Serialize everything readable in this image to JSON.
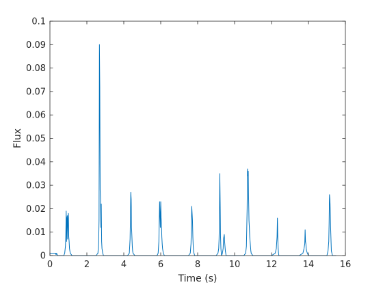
{
  "chart_data": {
    "type": "line",
    "xlabel": "Time (s)",
    "ylabel": "Flux",
    "xlim": [
      0,
      16
    ],
    "ylim": [
      0,
      0.1
    ],
    "xticks": [
      "0",
      "2",
      "4",
      "6",
      "8",
      "10",
      "12",
      "14",
      "16"
    ],
    "yticks": [
      "0",
      "0.01",
      "0.02",
      "0.03",
      "0.04",
      "0.05",
      "0.06",
      "0.07",
      "0.08",
      "0.09",
      "0.1"
    ],
    "grid": false,
    "line_color": "#0072BD",
    "series": [
      {
        "x": [
          0,
          0.3,
          0.32,
          0.34,
          0.36,
          0.38,
          0.4,
          0.5,
          0.75,
          0.8,
          0.84,
          0.86,
          0.88,
          0.9,
          0.92,
          0.94,
          0.96,
          0.98,
          1.0,
          1.02,
          1.04,
          1.06,
          1.1,
          1.15,
          1.2,
          1.3,
          1.5,
          2.0,
          2.5,
          2.6,
          2.64,
          2.66,
          2.68,
          2.7,
          2.72,
          2.74,
          2.76,
          2.78,
          2.8,
          2.82,
          2.86,
          2.9,
          3.0,
          3.5,
          4.0,
          4.2,
          4.3,
          4.34,
          4.36,
          4.38,
          4.4,
          4.42,
          4.44,
          4.46,
          4.48,
          4.5,
          4.55,
          4.6,
          4.7,
          5.0,
          5.5,
          5.8,
          5.86,
          5.9,
          5.92,
          5.94,
          5.96,
          5.98,
          6.0,
          6.02,
          6.04,
          6.06,
          6.08,
          6.1,
          6.14,
          6.2,
          6.3,
          6.5,
          7.0,
          7.5,
          7.6,
          7.64,
          7.66,
          7.68,
          7.7,
          7.72,
          7.74,
          7.76,
          7.78,
          7.8,
          7.84,
          7.9,
          8.0,
          8.5,
          9.0,
          9.1,
          9.14,
          9.16,
          9.18,
          9.2,
          9.22,
          9.24,
          9.26,
          9.28,
          9.3,
          9.34,
          9.38,
          9.4,
          9.44,
          9.46,
          9.48,
          9.5,
          9.52,
          9.54,
          9.56,
          9.58,
          9.6,
          9.65,
          9.7,
          10.0,
          10.5,
          10.6,
          10.64,
          10.66,
          10.68,
          10.7,
          10.72,
          10.74,
          10.76,
          10.78,
          10.8,
          10.82,
          10.84,
          10.86,
          10.88,
          10.9,
          10.94,
          11.0,
          11.05,
          11.1,
          11.2,
          11.5,
          12.0,
          12.2,
          12.26,
          12.3,
          12.32,
          12.34,
          12.36,
          12.38,
          12.4,
          12.44,
          12.5,
          12.6,
          13.0,
          13.5,
          13.7,
          13.76,
          13.8,
          13.82,
          13.84,
          13.86,
          13.88,
          13.9,
          13.94,
          14.0,
          14.1,
          14.5,
          15.0,
          15.06,
          15.1,
          15.12,
          15.14,
          15.16,
          15.18,
          15.2,
          15.24,
          15.3,
          15.35,
          15.5
        ],
        "y": [
          0.001,
          0.001,
          0.0005,
          0.001,
          0.0005,
          0.0008,
          0,
          0,
          0,
          0.001,
          0.004,
          0.008,
          0.019,
          0.006,
          0.016,
          0.017,
          0.007,
          0.016,
          0.018,
          0.008,
          0.006,
          0.003,
          0.001,
          0.0005,
          0,
          0,
          0,
          0,
          0,
          0.001,
          0.006,
          0.015,
          0.09,
          0.072,
          0.028,
          0.024,
          0.012,
          0.022,
          0.006,
          0.003,
          0.001,
          0,
          0,
          0,
          0,
          0,
          0.001,
          0.007,
          0.016,
          0.027,
          0.024,
          0.012,
          0.008,
          0.004,
          0.002,
          0.001,
          0.0005,
          0,
          0,
          0,
          0,
          0,
          0.001,
          0.006,
          0.015,
          0.023,
          0.017,
          0.012,
          0.023,
          0.016,
          0.014,
          0.008,
          0.005,
          0.003,
          0.001,
          0,
          0,
          0,
          0,
          0,
          0.001,
          0.005,
          0.012,
          0.021,
          0.018,
          0.015,
          0.008,
          0.004,
          0.002,
          0.001,
          0,
          0,
          0,
          0,
          0,
          0.001,
          0.003,
          0.007,
          0.015,
          0.035,
          0.022,
          0.008,
          0.003,
          0.001,
          0,
          0.001,
          0.003,
          0.007,
          0.009,
          0.006,
          0.004,
          0.002,
          0.001,
          0,
          0,
          0,
          0,
          0,
          0,
          0,
          0,
          0.001,
          0.004,
          0.012,
          0.02,
          0.037,
          0.034,
          0.036,
          0.024,
          0.015,
          0.012,
          0.008,
          0.006,
          0.004,
          0.002,
          0.001,
          0.0005,
          0,
          0,
          0,
          0,
          0,
          0,
          0.001,
          0.003,
          0.008,
          0.016,
          0.007,
          0.003,
          0.001,
          0,
          0,
          0,
          0,
          0,
          0,
          0.001,
          0.003,
          0.005,
          0.011,
          0.006,
          0.005,
          0.003,
          0.002,
          0.001,
          0,
          0,
          0,
          0,
          0.002,
          0.006,
          0.014,
          0.026,
          0.024,
          0.02,
          0.012,
          0.002,
          0,
          0,
          0
        ]
      }
    ]
  }
}
